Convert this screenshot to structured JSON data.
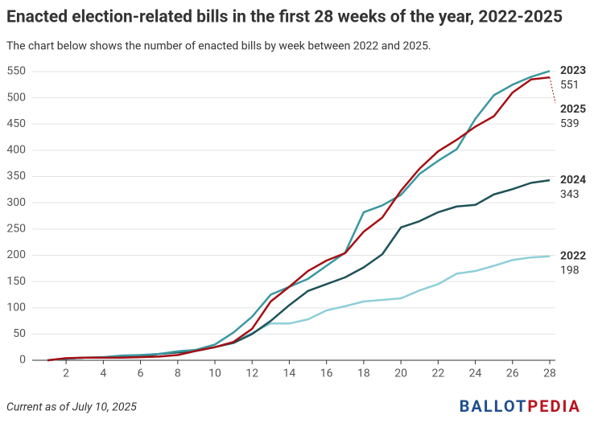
{
  "chart_data": {
    "type": "line",
    "title": "Enacted election-related bills in the first 28 weeks of the year, 2022-2025",
    "subtitle": "The chart below shows the number of enacted bills by week between 2022 and 2025.",
    "x": [
      1,
      2,
      3,
      4,
      5,
      6,
      7,
      8,
      9,
      10,
      11,
      12,
      13,
      14,
      15,
      16,
      17,
      18,
      19,
      20,
      21,
      22,
      23,
      24,
      25,
      26,
      27,
      28
    ],
    "series": [
      {
        "name": "2022",
        "color": "#8ecfd8",
        "values": [
          0,
          3,
          5,
          6,
          8,
          10,
          12,
          15,
          20,
          25,
          35,
          52,
          70,
          70,
          78,
          95,
          103,
          112,
          115,
          118,
          133,
          145,
          165,
          170,
          180,
          191,
          196,
          198
        ]
      },
      {
        "name": "2024",
        "color": "#1e5258",
        "values": [
          0,
          3,
          5,
          5,
          6,
          7,
          12,
          15,
          18,
          25,
          33,
          50,
          75,
          105,
          132,
          145,
          158,
          177,
          202,
          253,
          265,
          282,
          293,
          296,
          316,
          326,
          338,
          343
        ]
      },
      {
        "name": "2023",
        "color": "#3b979f",
        "values": [
          0,
          3,
          5,
          6,
          9,
          10,
          12,
          17,
          20,
          30,
          53,
          83,
          125,
          140,
          155,
          180,
          205,
          282,
          295,
          315,
          355,
          380,
          402,
          460,
          505,
          525,
          540,
          551
        ]
      },
      {
        "name": "2025",
        "color": "#a50f15",
        "values": [
          0,
          4,
          5,
          5,
          5,
          6,
          7,
          10,
          18,
          25,
          35,
          60,
          112,
          140,
          170,
          190,
          204,
          245,
          272,
          323,
          365,
          398,
          420,
          445,
          465,
          510,
          535,
          539
        ]
      }
    ],
    "xlim": [
      1,
      28
    ],
    "xticks": [
      2,
      4,
      6,
      8,
      10,
      12,
      14,
      16,
      18,
      20,
      22,
      24,
      26,
      28
    ],
    "ylim": [
      0,
      550
    ],
    "yticks": [
      0,
      50,
      100,
      150,
      200,
      250,
      300,
      350,
      400,
      450,
      500,
      550
    ],
    "grid": true,
    "footnote": "Current as of July 10, 2025",
    "logo": [
      "BALLOT",
      "PEDIA"
    ]
  }
}
